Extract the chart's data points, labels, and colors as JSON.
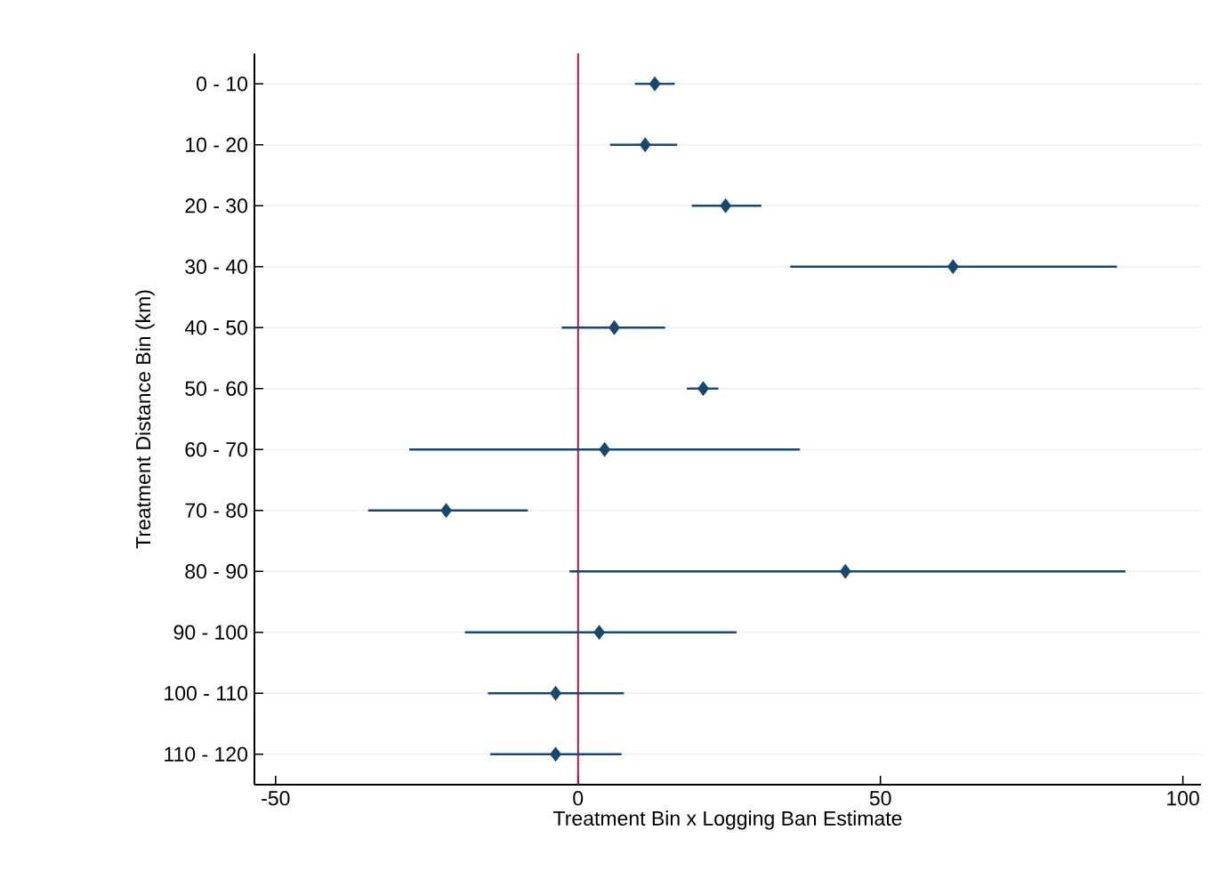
{
  "chart_data": {
    "type": "scatter",
    "orientation": "horizontal",
    "xlabel": "Treatment Bin x Logging Ban Estimate",
    "ylabel": "Treatment Distance Bin (km)",
    "categories": [
      "0 - 10",
      "10 - 20",
      "20 - 30",
      "30 - 40",
      "40 - 50",
      "50 - 60",
      "60 - 70",
      "70 - 80",
      "80 - 90",
      "90 - 100",
      "100 - 110",
      "110 - 120"
    ],
    "values": [
      12.7,
      11.1,
      24.4,
      62.0,
      6.0,
      20.7,
      4.4,
      -21.8,
      44.2,
      3.5,
      -3.7,
      -3.7
    ],
    "errors": [
      [
        9.4,
        16.0
      ],
      [
        5.3,
        16.4
      ],
      [
        18.8,
        30.3
      ],
      [
        35.1,
        89.1
      ],
      [
        -2.7,
        14.4
      ],
      [
        18.0,
        23.2
      ],
      [
        -27.9,
        36.7
      ],
      [
        -34.7,
        -8.3
      ],
      [
        -1.4,
        90.5
      ],
      [
        -18.7,
        26.2
      ],
      [
        -14.9,
        7.6
      ],
      [
        -14.5,
        7.2
      ]
    ],
    "color": "#1a476f",
    "marker": "diamond",
    "xlim": [
      -53.5,
      103
    ],
    "xticks": [
      -50,
      0,
      50,
      100
    ],
    "ref_lines": [
      {
        "axis": "x",
        "value": 0,
        "color": "#c10534"
      }
    ],
    "grid": "y"
  }
}
